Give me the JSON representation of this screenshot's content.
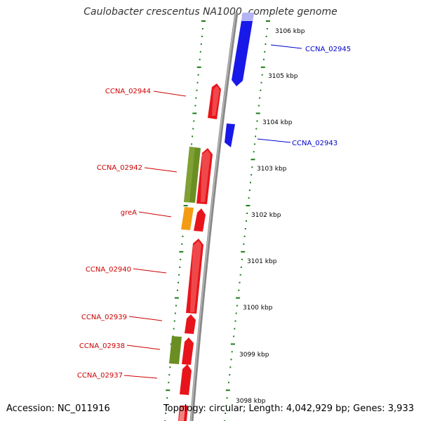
{
  "title": "Caulobacter crescentus NA1000, complete genome",
  "footer": {
    "accession": "Accession: NC_011916",
    "summary": "Topology: circular; Length: 4,042,929 bp; Genes: 3,933"
  },
  "colors": {
    "forward_gene": "#e8141b",
    "reverse_gene": "#1818e8",
    "rrna_like": "#6b8e23",
    "orange_gene": "#f39c12",
    "backbone": "#888888",
    "dots": "#1a7a1a",
    "label_red": "#cc0000",
    "label_blue": "#0000cc"
  },
  "scale_ticks": [
    {
      "label": "3106 kbp"
    },
    {
      "label": "3105 kbp"
    },
    {
      "label": "3104 kbp"
    },
    {
      "label": "3103 kbp"
    },
    {
      "label": "3102 kbp"
    },
    {
      "label": "3101 kbp"
    },
    {
      "label": "3100 kbp"
    },
    {
      "label": "3099 kbp"
    },
    {
      "label": "3098 kbp"
    }
  ],
  "gene_labels": [
    {
      "name": "CCNA_02945",
      "strand": "reverse"
    },
    {
      "name": "CCNA_02944",
      "strand": "forward"
    },
    {
      "name": "CCNA_02943",
      "strand": "reverse"
    },
    {
      "name": "CCNA_02942",
      "strand": "forward"
    },
    {
      "name": "greA",
      "strand": "forward"
    },
    {
      "name": "CCNA_02940",
      "strand": "forward"
    },
    {
      "name": "CCNA_02939",
      "strand": "forward"
    },
    {
      "name": "CCNA_02938",
      "strand": "forward"
    },
    {
      "name": "CCNA_02937",
      "strand": "forward"
    }
  ]
}
